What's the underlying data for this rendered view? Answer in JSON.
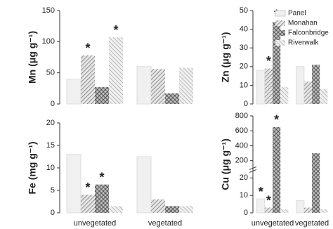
{
  "chart_data": [
    {
      "type": "bar",
      "ylabel": "Mn (μg g⁻¹)",
      "categories": [
        null,
        null
      ],
      "series": [
        {
          "name": "Panel",
          "color": "#f0f0f0",
          "pattern": "none",
          "values": [
            40,
            60
          ]
        },
        {
          "name": "Monahan",
          "color": "#c8c8c8",
          "pattern": "diagonal",
          "values": [
            78,
            56
          ]
        },
        {
          "name": "Falconbridge",
          "color": "#888888",
          "pattern": "crosshatch",
          "values": [
            27,
            17
          ]
        },
        {
          "name": "Riverwalk",
          "color": "#b0b0b0",
          "pattern": "backdiagonal",
          "values": [
            107,
            58
          ]
        }
      ],
      "ylim": [
        0,
        150
      ],
      "yticks": [
        0,
        50,
        100,
        150
      ],
      "annotations": [
        {
          "text": "*",
          "series": "Monahan",
          "category": 0
        },
        {
          "text": "*",
          "series": "Riverwalk",
          "category": 0
        }
      ]
    },
    {
      "type": "bar",
      "ylabel": "Zn (μg g⁻¹)",
      "categories": [
        null,
        null
      ],
      "legend": "upper right",
      "series": [
        {
          "name": "Panel",
          "color": "#f0f0f0",
          "pattern": "none",
          "values": [
            18,
            20
          ]
        },
        {
          "name": "Monahan",
          "color": "#c8c8c8",
          "pattern": "diagonal",
          "values": [
            19,
            12
          ]
        },
        {
          "name": "Falconbridge",
          "color": "#888888",
          "pattern": "crosshatch",
          "values": [
            44,
            21
          ]
        },
        {
          "name": "Riverwalk",
          "color": "#b0b0b0",
          "pattern": "backdiagonal",
          "values": [
            9,
            8
          ]
        }
      ],
      "ylim": [
        0,
        50
      ],
      "yticks": [
        0,
        10,
        20,
        30,
        40,
        50
      ],
      "annotations": [
        {
          "text": "*",
          "series": "Monahan",
          "category": 0
        },
        {
          "text": "*",
          "series": "Falconbridge",
          "category": 0
        }
      ]
    },
    {
      "type": "bar",
      "ylabel": "Fe (mg g⁻¹)",
      "categories": [
        "unvegetated",
        "vegetated"
      ],
      "series": [
        {
          "name": "Panel",
          "color": "#f0f0f0",
          "pattern": "none",
          "values": [
            13,
            12.5
          ]
        },
        {
          "name": "Monahan",
          "color": "#c8c8c8",
          "pattern": "diagonal",
          "values": [
            4,
            3
          ]
        },
        {
          "name": "Falconbridge",
          "color": "#888888",
          "pattern": "crosshatch",
          "values": [
            6.3,
            1.5
          ]
        },
        {
          "name": "Riverwalk",
          "color": "#b0b0b0",
          "pattern": "backdiagonal",
          "values": [
            1.5,
            1.5
          ]
        }
      ],
      "ylim": [
        0,
        20
      ],
      "yticks": [
        0,
        5,
        10,
        15,
        20
      ],
      "annotations": [
        {
          "text": "*",
          "series": "Monahan",
          "category": 0
        },
        {
          "text": "*",
          "series": "Falconbridge",
          "category": 0
        }
      ]
    },
    {
      "type": "bar",
      "ylabel": "Cu (μg g⁻¹)",
      "categories": [
        "unvegetated",
        "vegetated"
      ],
      "series": [
        {
          "name": "Panel",
          "color": "#f0f0f0",
          "pattern": "none",
          "values": [
            8,
            7
          ]
        },
        {
          "name": "Monahan",
          "color": "#c8c8c8",
          "pattern": "diagonal",
          "values": [
            3,
            3
          ]
        },
        {
          "name": "Falconbridge",
          "color": "#888888",
          "pattern": "crosshatch",
          "values": [
            650,
            300
          ]
        },
        {
          "name": "Riverwalk",
          "color": "#b0b0b0",
          "pattern": "backdiagonal",
          "values": [
            2,
            2
          ]
        }
      ],
      "ylim": [
        0,
        800
      ],
      "ybreak": [
        25,
        150
      ],
      "yticks": [
        0,
        10,
        20,
        200,
        400,
        600,
        800
      ],
      "annotations": [
        {
          "text": "*",
          "series": "Panel",
          "category": 0
        },
        {
          "text": "*",
          "series": "Monahan",
          "category": 0
        },
        {
          "text": "*",
          "series": "Falconbridge",
          "category": 0
        }
      ]
    }
  ]
}
